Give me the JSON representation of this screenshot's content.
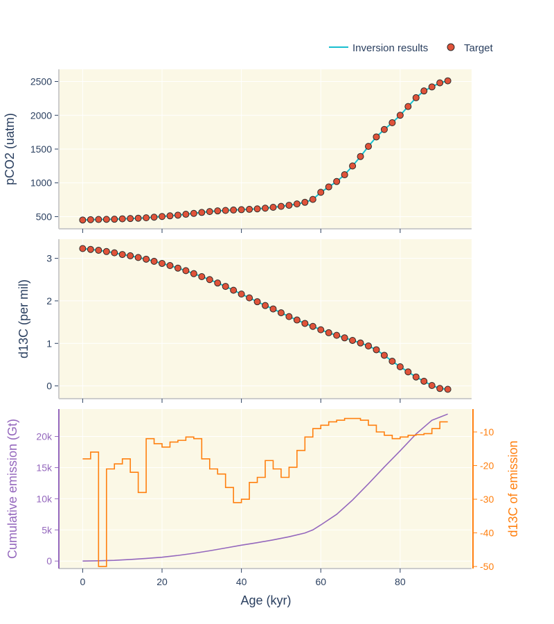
{
  "legend": {
    "line_label": "Inversion results",
    "marker_label": "Target"
  },
  "colors": {
    "plot_bg": "#fbf8e6",
    "grid": "#ffffff",
    "axis_text": "#2a3f5f",
    "axis_line": "#cccccc",
    "inversion_line": "#17becf",
    "target_fill": "#e0533a",
    "target_edge": "#2a2a2a",
    "cumulative": "#9467bd",
    "d13c_emission": "#ff7f0e"
  },
  "chart_data": [
    {
      "type": "line",
      "panel": "pco2",
      "ylabel": "pCO2 (uatm)",
      "xlim": [
        -6,
        98
      ],
      "ylim": [
        320,
        2680
      ],
      "yticks": [
        500,
        1000,
        1500,
        2000,
        2500
      ],
      "xticks": [
        0,
        20,
        40,
        60,
        80
      ],
      "series": [
        {
          "name": "Inversion results",
          "x": [
            0,
            2,
            4,
            6,
            8,
            10,
            12,
            14,
            16,
            18,
            20,
            22,
            24,
            26,
            28,
            30,
            32,
            34,
            36,
            38,
            40,
            42,
            44,
            46,
            48,
            50,
            52,
            54,
            56,
            58,
            60,
            62,
            64,
            66,
            68,
            70,
            72,
            74,
            76,
            78,
            80,
            82,
            84,
            86,
            88,
            90,
            92
          ],
          "y": [
            450,
            455,
            458,
            460,
            462,
            468,
            472,
            477,
            483,
            492,
            502,
            512,
            522,
            535,
            548,
            562,
            575,
            585,
            592,
            598,
            603,
            608,
            615,
            625,
            638,
            652,
            668,
            688,
            712,
            755,
            860,
            940,
            1020,
            1120,
            1250,
            1390,
            1540,
            1680,
            1790,
            1890,
            2000,
            2130,
            2260,
            2360,
            2420,
            2480,
            2510
          ]
        },
        {
          "name": "Target",
          "x": [
            0,
            2,
            4,
            6,
            8,
            10,
            12,
            14,
            16,
            18,
            20,
            22,
            24,
            26,
            28,
            30,
            32,
            34,
            36,
            38,
            40,
            42,
            44,
            46,
            48,
            50,
            52,
            54,
            56,
            58,
            60,
            62,
            64,
            66,
            68,
            70,
            72,
            74,
            76,
            78,
            80,
            82,
            84,
            86,
            88,
            90,
            92
          ],
          "y": [
            450,
            455,
            458,
            460,
            462,
            468,
            472,
            477,
            483,
            492,
            502,
            512,
            522,
            535,
            548,
            562,
            575,
            585,
            592,
            598,
            603,
            608,
            615,
            625,
            638,
            652,
            668,
            688,
            712,
            755,
            860,
            940,
            1020,
            1120,
            1250,
            1390,
            1540,
            1680,
            1790,
            1890,
            2000,
            2130,
            2260,
            2360,
            2420,
            2480,
            2510
          ]
        }
      ]
    },
    {
      "type": "line",
      "panel": "d13c",
      "ylabel": "d13C (per mil)",
      "xlim": [
        -6,
        98
      ],
      "ylim": [
        -0.3,
        3.45
      ],
      "yticks": [
        0,
        1,
        2,
        3
      ],
      "xticks": [
        0,
        20,
        40,
        60,
        80
      ],
      "series": [
        {
          "name": "Inversion results",
          "x": [
            0,
            2,
            4,
            6,
            8,
            10,
            12,
            14,
            16,
            18,
            20,
            22,
            24,
            26,
            28,
            30,
            32,
            34,
            36,
            38,
            40,
            42,
            44,
            46,
            48,
            50,
            52,
            54,
            56,
            58,
            60,
            62,
            64,
            66,
            68,
            70,
            72,
            74,
            76,
            78,
            80,
            82,
            84,
            86,
            88,
            90,
            92
          ],
          "y": [
            3.23,
            3.21,
            3.19,
            3.16,
            3.13,
            3.09,
            3.06,
            3.02,
            2.98,
            2.93,
            2.88,
            2.83,
            2.77,
            2.71,
            2.64,
            2.57,
            2.5,
            2.42,
            2.34,
            2.25,
            2.16,
            2.07,
            1.98,
            1.89,
            1.81,
            1.72,
            1.63,
            1.55,
            1.47,
            1.4,
            1.32,
            1.25,
            1.19,
            1.13,
            1.07,
            1.01,
            0.94,
            0.85,
            0.72,
            0.58,
            0.45,
            0.33,
            0.21,
            0.11,
            0.01,
            -0.06,
            -0.08
          ]
        },
        {
          "name": "Target",
          "x": [
            0,
            2,
            4,
            6,
            8,
            10,
            12,
            14,
            16,
            18,
            20,
            22,
            24,
            26,
            28,
            30,
            32,
            34,
            36,
            38,
            40,
            42,
            44,
            46,
            48,
            50,
            52,
            54,
            56,
            58,
            60,
            62,
            64,
            66,
            68,
            70,
            72,
            74,
            76,
            78,
            80,
            82,
            84,
            86,
            88,
            90,
            92
          ],
          "y": [
            3.23,
            3.21,
            3.19,
            3.16,
            3.13,
            3.09,
            3.06,
            3.02,
            2.98,
            2.93,
            2.88,
            2.83,
            2.77,
            2.71,
            2.64,
            2.57,
            2.5,
            2.42,
            2.34,
            2.25,
            2.16,
            2.07,
            1.98,
            1.89,
            1.81,
            1.72,
            1.63,
            1.55,
            1.47,
            1.4,
            1.32,
            1.25,
            1.19,
            1.13,
            1.07,
            1.01,
            0.94,
            0.85,
            0.72,
            0.58,
            0.45,
            0.33,
            0.21,
            0.11,
            0.01,
            -0.06,
            -0.08
          ]
        }
      ]
    },
    {
      "type": "line",
      "panel": "emission",
      "xlabel": "Age (kyr)",
      "ylabel": "Cumulative emission (Gt)",
      "y2label": "d13C of emission",
      "xlim": [
        -6,
        98
      ],
      "ylim": [
        -1200,
        24400
      ],
      "y2lim": [
        -50.6,
        -3.2
      ],
      "yticks": [
        0,
        5000,
        10000,
        15000,
        20000
      ],
      "ytick_labels": [
        "0",
        "5k",
        "10k",
        "15k",
        "20k"
      ],
      "y2ticks": [
        -50,
        -40,
        -30,
        -20,
        -10
      ],
      "xticks": [
        0,
        20,
        40,
        60,
        80
      ],
      "series": [
        {
          "name": "Cumulative emission",
          "axis": "y",
          "x": [
            0,
            4,
            8,
            12,
            16,
            20,
            24,
            28,
            32,
            36,
            40,
            44,
            48,
            52,
            56,
            58,
            60,
            64,
            68,
            72,
            76,
            80,
            84,
            88,
            92
          ],
          "y": [
            0,
            50,
            120,
            250,
            420,
            620,
            900,
            1250,
            1650,
            2100,
            2550,
            2950,
            3400,
            3900,
            4500,
            5000,
            5800,
            7500,
            9800,
            12400,
            15100,
            17700,
            20400,
            22600,
            23600
          ]
        },
        {
          "name": "d13C of emission",
          "axis": "y2",
          "step": true,
          "x": [
            0,
            2,
            4,
            6,
            8,
            10,
            12,
            14,
            16,
            18,
            20,
            22,
            24,
            26,
            28,
            30,
            32,
            34,
            36,
            38,
            40,
            42,
            44,
            46,
            48,
            50,
            52,
            54,
            56,
            58,
            60,
            62,
            64,
            66,
            68,
            70,
            72,
            74,
            76,
            78,
            80,
            82,
            84,
            86,
            88,
            90,
            92
          ],
          "y": [
            -18,
            -16,
            -50,
            -21,
            -19.5,
            -18,
            -22,
            -28,
            -12,
            -13.5,
            -14.5,
            -13,
            -12.5,
            -11.5,
            -12,
            -18,
            -21,
            -22.5,
            -26.5,
            -31,
            -30,
            -25,
            -23.5,
            -18.5,
            -21,
            -23.5,
            -20.5,
            -15.5,
            -11.5,
            -9,
            -8,
            -7,
            -6.5,
            -6,
            -6,
            -6.5,
            -8,
            -10,
            -11,
            -12,
            -11.5,
            -11,
            -10.8,
            -10.5,
            -9,
            -7,
            -7
          ]
        }
      ]
    }
  ]
}
